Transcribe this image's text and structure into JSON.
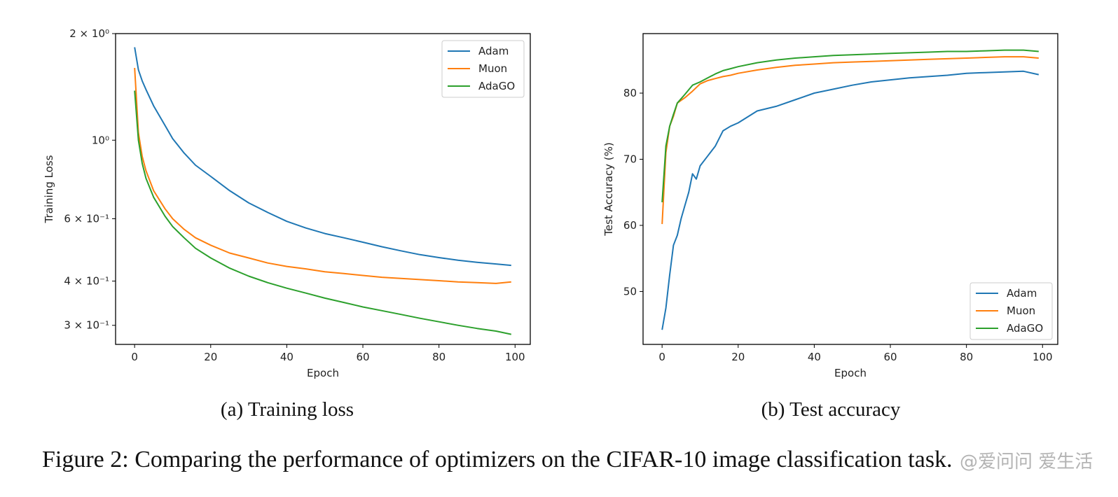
{
  "figure_caption": "Figure 2: Comparing the performance of optimizers on the CIFAR-10 image classification task.",
  "watermark": "@爱问问 爱生活",
  "colors": {
    "Adam": "#1f77b4",
    "Muon": "#ff7f0e",
    "AdaGO": "#2ca02c"
  },
  "chart_data": [
    {
      "type": "line",
      "subcaption": "(a) Training loss",
      "xlabel": "Epoch",
      "ylabel": "Training Loss",
      "yscale": "log",
      "xlim": [
        -5,
        104
      ],
      "ylim": [
        0.265,
        2.0
      ],
      "xticks": [
        0,
        20,
        40,
        60,
        80,
        100
      ],
      "xtick_labels": [
        "0",
        "20",
        "40",
        "60",
        "80",
        "100"
      ],
      "yticks": [
        2.0,
        1.0,
        0.6,
        0.4,
        0.3
      ],
      "ytick_labels": [
        "2 × 10⁰",
        "10⁰",
        "6 × 10⁻¹",
        "4 × 10⁻¹",
        "3 × 10⁻¹"
      ],
      "legend": "top-right",
      "grid": false,
      "series": [
        {
          "name": "Adam",
          "x": [
            0,
            1,
            2,
            3,
            5,
            8,
            10,
            13,
            16,
            20,
            25,
            30,
            35,
            40,
            45,
            50,
            55,
            60,
            65,
            70,
            75,
            80,
            85,
            90,
            95,
            99
          ],
          "y": [
            1.83,
            1.58,
            1.47,
            1.39,
            1.25,
            1.1,
            1.01,
            0.92,
            0.85,
            0.79,
            0.72,
            0.665,
            0.625,
            0.59,
            0.565,
            0.545,
            0.53,
            0.515,
            0.5,
            0.487,
            0.475,
            0.466,
            0.458,
            0.452,
            0.447,
            0.443
          ]
        },
        {
          "name": "Muon",
          "x": [
            0,
            1,
            2,
            3,
            5,
            8,
            10,
            13,
            16,
            20,
            25,
            30,
            35,
            40,
            45,
            50,
            55,
            60,
            65,
            70,
            75,
            80,
            85,
            90,
            95,
            99
          ],
          "y": [
            1.6,
            1.05,
            0.9,
            0.82,
            0.72,
            0.64,
            0.6,
            0.56,
            0.53,
            0.505,
            0.48,
            0.465,
            0.45,
            0.44,
            0.433,
            0.425,
            0.42,
            0.415,
            0.41,
            0.407,
            0.404,
            0.401,
            0.398,
            0.396,
            0.394,
            0.398
          ]
        },
        {
          "name": "AdaGO",
          "x": [
            0,
            1,
            2,
            3,
            5,
            8,
            10,
            13,
            16,
            20,
            25,
            30,
            35,
            40,
            45,
            50,
            55,
            60,
            65,
            70,
            75,
            80,
            85,
            90,
            95,
            99
          ],
          "y": [
            1.38,
            1.0,
            0.86,
            0.78,
            0.69,
            0.61,
            0.57,
            0.53,
            0.495,
            0.465,
            0.435,
            0.413,
            0.396,
            0.382,
            0.37,
            0.358,
            0.348,
            0.338,
            0.33,
            0.322,
            0.314,
            0.307,
            0.3,
            0.294,
            0.289,
            0.283
          ]
        }
      ]
    },
    {
      "type": "line",
      "subcaption": "(b) Test accuracy",
      "xlabel": "Epoch",
      "ylabel": "Test Accuracy (%)",
      "xlim": [
        -5,
        104
      ],
      "ylim": [
        42,
        89
      ],
      "xticks": [
        0,
        20,
        40,
        60,
        80,
        100
      ],
      "xtick_labels": [
        "0",
        "20",
        "40",
        "60",
        "80",
        "100"
      ],
      "yticks": [
        50,
        60,
        70,
        80
      ],
      "ytick_labels": [
        "50",
        "60",
        "70",
        "80"
      ],
      "legend": "bottom-right",
      "grid": false,
      "series": [
        {
          "name": "Adam",
          "x": [
            0,
            1,
            2,
            3,
            4,
            5,
            6,
            7,
            8,
            9,
            10,
            12,
            14,
            16,
            18,
            20,
            25,
            30,
            35,
            40,
            45,
            50,
            55,
            60,
            65,
            70,
            75,
            80,
            85,
            90,
            95,
            99
          ],
          "y": [
            44.2,
            47.5,
            52.5,
            57.0,
            58.5,
            61.0,
            63.0,
            65.0,
            67.8,
            67.0,
            69.0,
            70.5,
            72.0,
            74.3,
            75.0,
            75.5,
            77.3,
            78.0,
            79.0,
            80.0,
            80.6,
            81.2,
            81.7,
            82.0,
            82.3,
            82.5,
            82.7,
            83.0,
            83.1,
            83.2,
            83.3,
            82.8
          ]
        },
        {
          "name": "Muon",
          "x": [
            0,
            1,
            2,
            3,
            4,
            6,
            8,
            10,
            12,
            14,
            16,
            18,
            20,
            25,
            30,
            35,
            40,
            45,
            50,
            55,
            60,
            65,
            70,
            75,
            80,
            85,
            90,
            95,
            99
          ],
          "y": [
            60.2,
            71.0,
            75.0,
            76.5,
            78.5,
            79.3,
            80.3,
            81.4,
            81.9,
            82.2,
            82.5,
            82.7,
            83.0,
            83.5,
            83.9,
            84.2,
            84.4,
            84.6,
            84.7,
            84.8,
            84.9,
            85.0,
            85.1,
            85.2,
            85.3,
            85.4,
            85.5,
            85.5,
            85.3
          ]
        },
        {
          "name": "AdaGO",
          "x": [
            0,
            1,
            2,
            3,
            4,
            6,
            8,
            10,
            12,
            14,
            16,
            18,
            20,
            25,
            30,
            35,
            40,
            45,
            50,
            55,
            60,
            65,
            70,
            75,
            80,
            85,
            90,
            95,
            99
          ],
          "y": [
            63.5,
            72.0,
            75.0,
            76.8,
            78.5,
            79.8,
            81.2,
            81.7,
            82.3,
            82.9,
            83.4,
            83.7,
            84.0,
            84.6,
            85.0,
            85.3,
            85.5,
            85.7,
            85.8,
            85.9,
            86.0,
            86.1,
            86.2,
            86.3,
            86.3,
            86.4,
            86.5,
            86.5,
            86.3
          ]
        }
      ]
    }
  ]
}
